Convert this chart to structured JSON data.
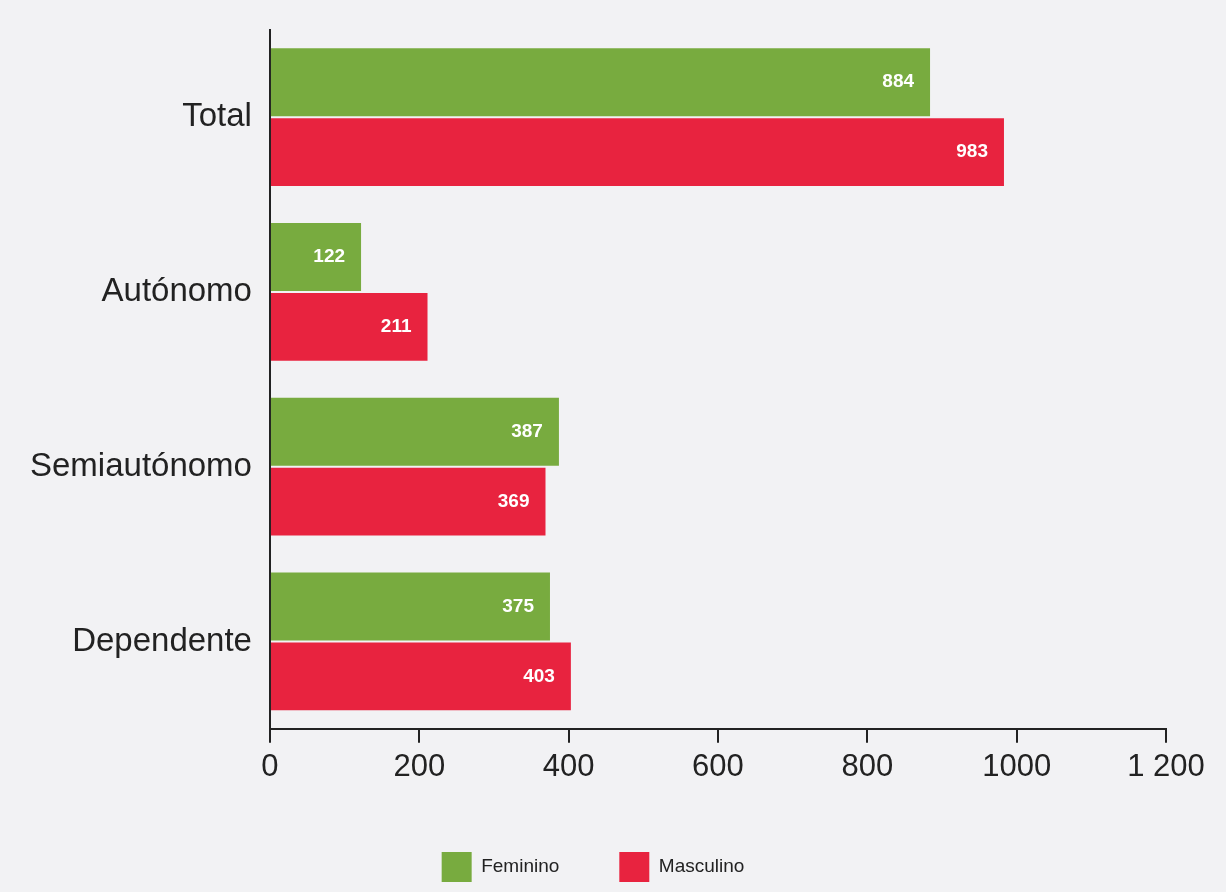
{
  "chart_data": {
    "type": "bar",
    "orientation": "horizontal",
    "categories": [
      "Total",
      "Autónomo",
      "Semiautónomo",
      "Dependente"
    ],
    "series": [
      {
        "name": "Feminino",
        "color": "#78ab3f",
        "values": [
          884,
          122,
          387,
          375
        ]
      },
      {
        "name": "Masculino",
        "color": "#e8233f",
        "values": [
          983,
          211,
          369,
          403
        ]
      }
    ],
    "xlim": [
      0,
      1200
    ],
    "xticks": [
      0,
      200,
      400,
      600,
      800,
      1000,
      {
        "value": 1200,
        "label": "1 200"
      }
    ],
    "data_labels": true,
    "legend": "bottom"
  }
}
